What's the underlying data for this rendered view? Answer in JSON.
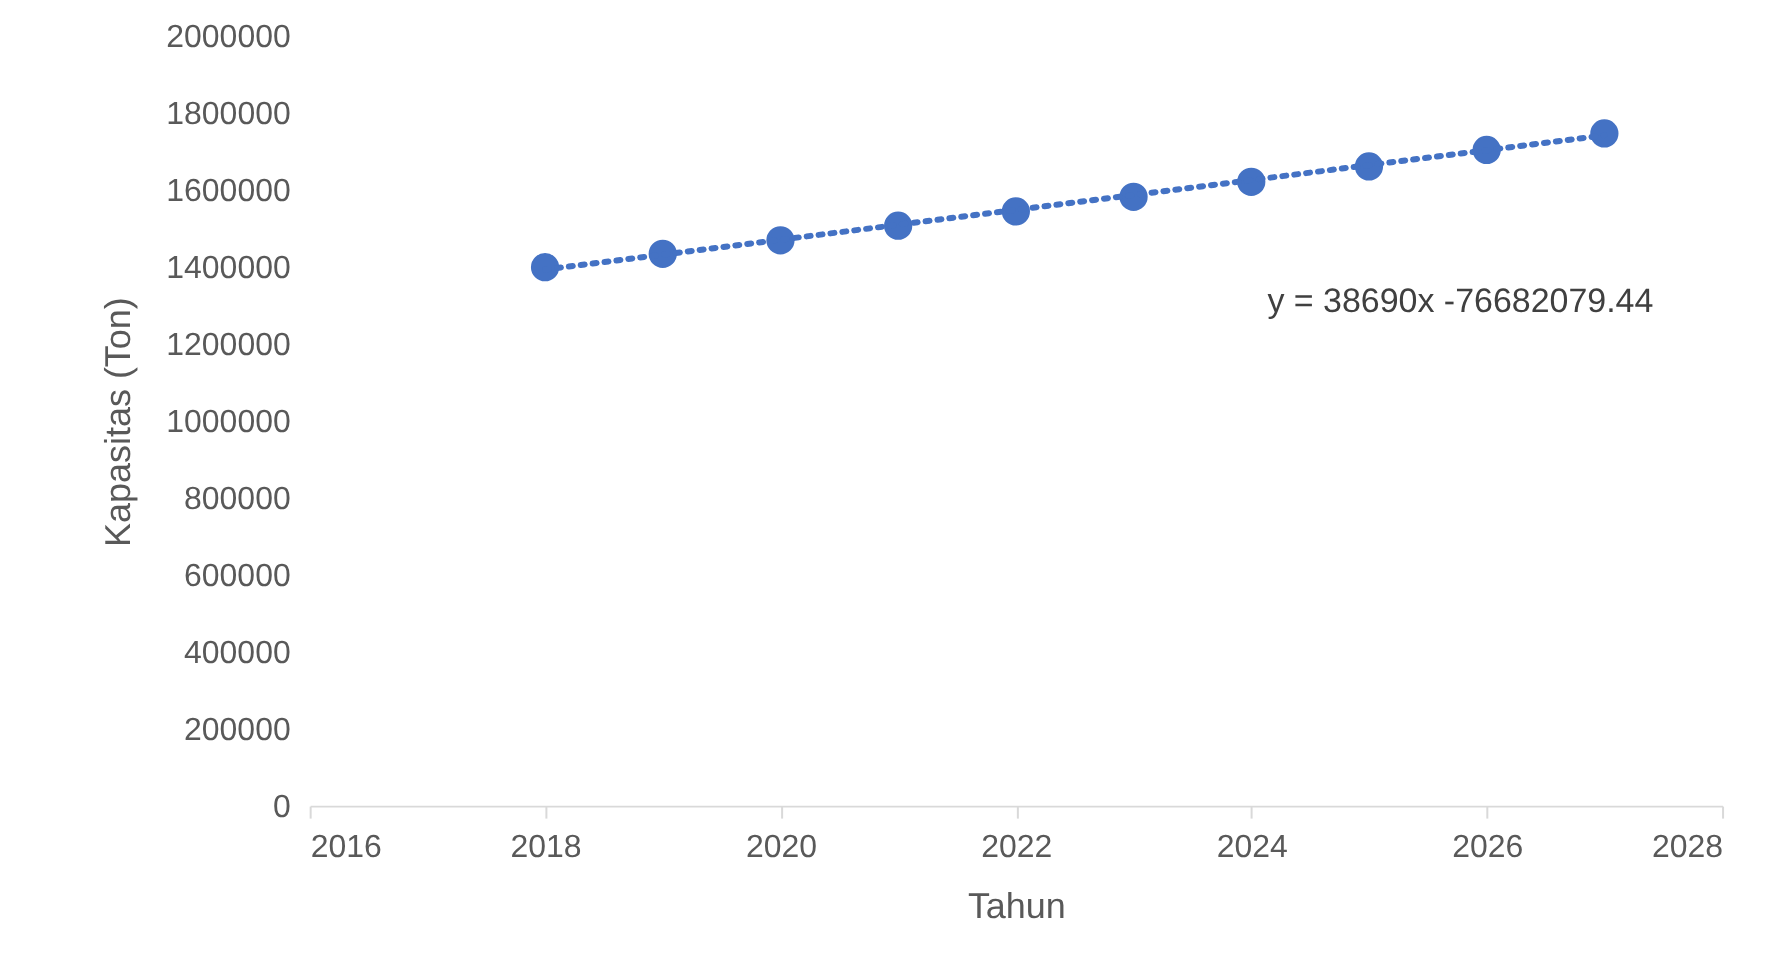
{
  "chart_data": {
    "type": "scatter",
    "xlabel": "Tahun",
    "ylabel": "Kapasitas (Ton)",
    "xlim": [
      2016,
      2028
    ],
    "xticks": [
      2016,
      2018,
      2020,
      2022,
      2024,
      2026,
      2028
    ],
    "ylim": [
      0,
      2000000
    ],
    "yticks": [
      0,
      200000,
      400000,
      600000,
      800000,
      1000000,
      1200000,
      1400000,
      1600000,
      1800000,
      2000000
    ],
    "grid": false,
    "marker": "circle",
    "series": [
      {
        "color": "#4472c4",
        "x": [
          2018,
          2019,
          2020,
          2021,
          2022,
          2023,
          2024,
          2025,
          2026,
          2027
        ],
        "values": [
          1400000,
          1435000,
          1470000,
          1508000,
          1545000,
          1583000,
          1622000,
          1662000,
          1705000,
          1748000
        ]
      },
      {
        "type": "line",
        "line_style": "dotted",
        "marker": "none",
        "color": "#4472c4",
        "x": [
          2018,
          2027
        ],
        "values": [
          1394000,
          1743000
        ]
      }
    ],
    "annotations": [
      "y = 38690x -76682079.44"
    ]
  }
}
